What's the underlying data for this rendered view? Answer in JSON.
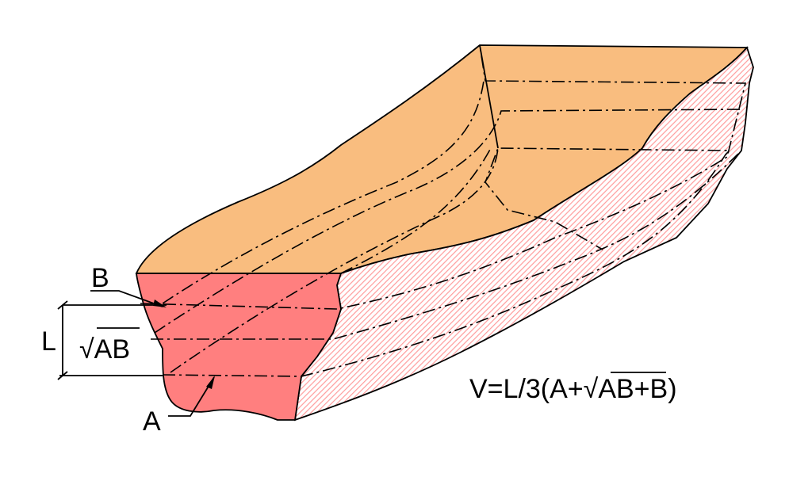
{
  "labels": {
    "top": "B",
    "middle": "√AB",
    "bottom": "A",
    "height": "L",
    "formula": "V=L/3(A+√AB+B)"
  },
  "colors": {
    "top_face": "#F9BD7F",
    "front_section": "#FF7F7F",
    "side_hatch": "#FF9C9C"
  }
}
